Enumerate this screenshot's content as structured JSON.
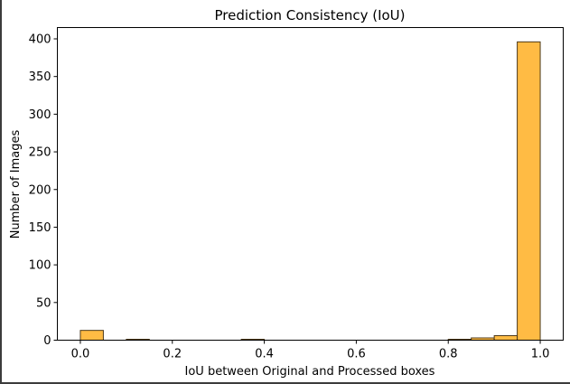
{
  "chart_data": {
    "type": "bar",
    "title": "Prediction Consistency (IoU)",
    "xlabel": "IoU between Original and Processed boxes",
    "ylabel": "Number of Images",
    "xlim": [
      -0.05,
      1.05
    ],
    "ylim": [
      0,
      415
    ],
    "xticks": [
      0.0,
      0.2,
      0.4,
      0.6,
      0.8,
      1.0
    ],
    "xtick_labels": [
      "0.0",
      "0.2",
      "0.4",
      "0.6",
      "0.8",
      "1.0"
    ],
    "yticks": [
      0,
      50,
      100,
      150,
      200,
      250,
      300,
      350,
      400
    ],
    "ytick_labels": [
      "0",
      "50",
      "100",
      "150",
      "200",
      "250",
      "300",
      "350",
      "400"
    ],
    "bin_width": 0.05,
    "bins": [
      {
        "start": 0.0,
        "end": 0.05,
        "count": 13
      },
      {
        "start": 0.05,
        "end": 0.1,
        "count": 0
      },
      {
        "start": 0.1,
        "end": 0.15,
        "count": 1
      },
      {
        "start": 0.15,
        "end": 0.2,
        "count": 0
      },
      {
        "start": 0.2,
        "end": 0.25,
        "count": 0
      },
      {
        "start": 0.25,
        "end": 0.3,
        "count": 0
      },
      {
        "start": 0.3,
        "end": 0.35,
        "count": 0
      },
      {
        "start": 0.35,
        "end": 0.4,
        "count": 1
      },
      {
        "start": 0.4,
        "end": 0.45,
        "count": 0
      },
      {
        "start": 0.45,
        "end": 0.5,
        "count": 0
      },
      {
        "start": 0.5,
        "end": 0.55,
        "count": 0
      },
      {
        "start": 0.55,
        "end": 0.6,
        "count": 0
      },
      {
        "start": 0.6,
        "end": 0.65,
        "count": 0
      },
      {
        "start": 0.65,
        "end": 0.7,
        "count": 0
      },
      {
        "start": 0.7,
        "end": 0.75,
        "count": 0
      },
      {
        "start": 0.75,
        "end": 0.8,
        "count": 0
      },
      {
        "start": 0.8,
        "end": 0.85,
        "count": 1
      },
      {
        "start": 0.85,
        "end": 0.9,
        "count": 3
      },
      {
        "start": 0.9,
        "end": 0.95,
        "count": 6
      },
      {
        "start": 0.95,
        "end": 1.0,
        "count": 396
      }
    ],
    "bar_color": "#ffbb44",
    "edge_color": "#4d3a1a",
    "grid": false,
    "legend": "none"
  }
}
